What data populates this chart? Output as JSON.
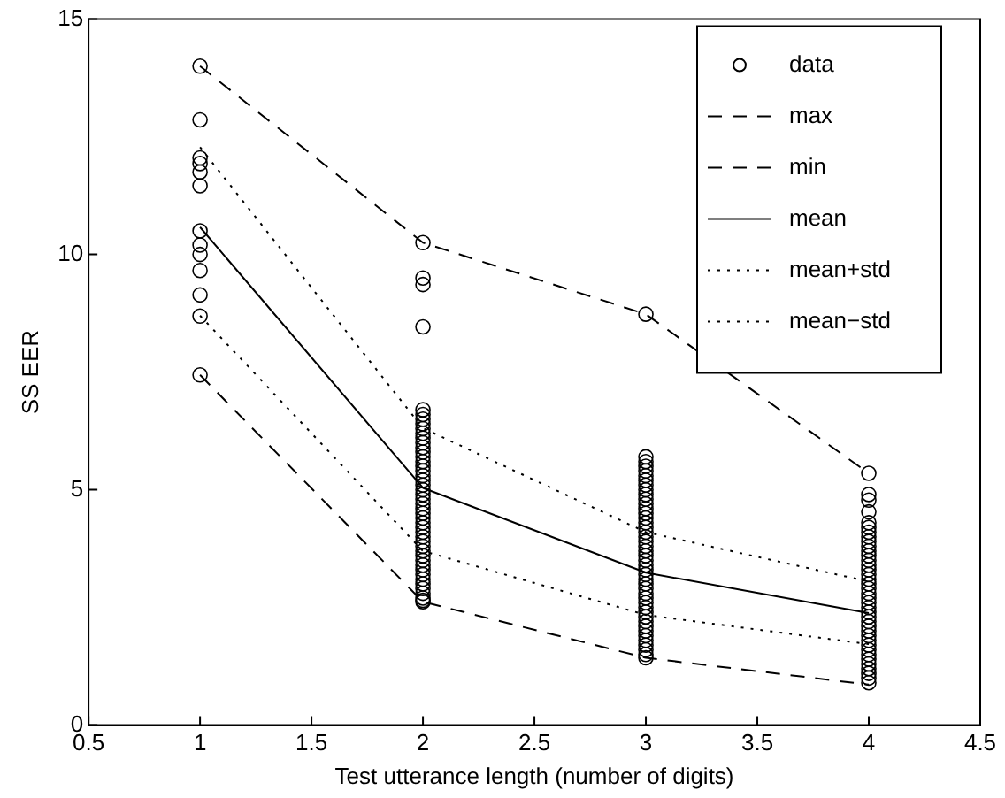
{
  "chart_data": {
    "type": "scatter",
    "xlabel": "Test utterance length (number of digits)",
    "ylabel": "SS EER",
    "xlim": [
      0.5,
      4.5
    ],
    "xticks": [
      0.5,
      1,
      1.5,
      2,
      2.5,
      3,
      3.5,
      4,
      4.5
    ],
    "ylim": [
      0,
      15
    ],
    "yticks": [
      0,
      5,
      10,
      15
    ],
    "grid": false,
    "legend": "top right",
    "series": [
      {
        "name": "data",
        "type": "scatter",
        "marker": "circle",
        "color": "#000000",
        "x": [
          1,
          1,
          1,
          1,
          1,
          1,
          1,
          1,
          1,
          1,
          1,
          1,
          1,
          2,
          2,
          2,
          2,
          2,
          2,
          2,
          2,
          2,
          2,
          2,
          2,
          2,
          2,
          2,
          2,
          2,
          2,
          2,
          2,
          2,
          2,
          2,
          2,
          2,
          2,
          2,
          2,
          2,
          2,
          2,
          2,
          2,
          2,
          2,
          2,
          2,
          2,
          2,
          2,
          2,
          2,
          2,
          2,
          2,
          2,
          2,
          3,
          3,
          3,
          3,
          3,
          3,
          3,
          3,
          3,
          3,
          3,
          3,
          3,
          3,
          3,
          3,
          3,
          3,
          3,
          3,
          3,
          3,
          3,
          3,
          3,
          3,
          3,
          3,
          3,
          3,
          3,
          3,
          3,
          3,
          3,
          3,
          3,
          3,
          3,
          3,
          3,
          3,
          3,
          3,
          3,
          4,
          4,
          4,
          4,
          4,
          4,
          4,
          4,
          4,
          4,
          4,
          4,
          4,
          4,
          4,
          4,
          4,
          4,
          4,
          4,
          4,
          4,
          4,
          4,
          4,
          4,
          4,
          4,
          4,
          4,
          4,
          4,
          4,
          4,
          4,
          4,
          4,
          4,
          4
        ],
        "values": [
          14.0,
          12.86,
          12.05,
          11.93,
          11.75,
          11.46,
          10.5,
          10.2,
          10.0,
          9.66,
          9.14,
          8.69,
          7.44,
          10.25,
          9.5,
          9.36,
          8.46,
          6.7,
          6.6,
          6.5,
          6.4,
          6.3,
          6.2,
          6.1,
          6.0,
          5.9,
          5.8,
          5.7,
          5.6,
          5.5,
          5.4,
          5.3,
          5.2,
          5.1,
          5.0,
          4.9,
          4.8,
          4.7,
          4.6,
          4.5,
          4.4,
          4.3,
          4.2,
          4.1,
          4.0,
          3.9,
          3.8,
          3.7,
          3.6,
          3.5,
          3.4,
          3.3,
          3.2,
          3.1,
          3.0,
          2.9,
          2.8,
          2.7,
          2.62,
          2.65,
          8.73,
          5.7,
          5.6,
          5.5,
          5.4,
          5.3,
          5.2,
          5.1,
          5.0,
          4.9,
          4.8,
          4.7,
          4.6,
          4.5,
          4.4,
          4.3,
          4.2,
          4.1,
          4.0,
          3.9,
          3.8,
          3.7,
          3.6,
          3.5,
          3.4,
          3.3,
          3.2,
          3.1,
          3.0,
          2.9,
          2.8,
          2.7,
          2.6,
          2.5,
          2.4,
          2.3,
          2.2,
          2.1,
          2.0,
          1.9,
          1.8,
          1.7,
          1.6,
          1.5,
          1.43,
          5.35,
          4.9,
          4.78,
          4.53,
          4.3,
          4.2,
          4.1,
          4.0,
          3.9,
          3.8,
          3.7,
          3.6,
          3.5,
          3.4,
          3.3,
          3.2,
          3.1,
          3.0,
          2.9,
          2.8,
          2.7,
          2.6,
          2.5,
          2.4,
          2.3,
          2.2,
          2.1,
          2.0,
          1.9,
          1.8,
          1.7,
          1.6,
          1.5,
          1.4,
          1.3,
          1.2,
          1.1,
          1.0,
          0.9
        ]
      },
      {
        "name": "max",
        "type": "line",
        "line_style": "dashed",
        "color": "#000000",
        "x": [
          1,
          2,
          3,
          4
        ],
        "values": [
          14.0,
          10.25,
          8.73,
          5.35
        ]
      },
      {
        "name": "min",
        "type": "line",
        "line_style": "dashed",
        "color": "#000000",
        "x": [
          1,
          2,
          3,
          4
        ],
        "values": [
          7.44,
          2.62,
          1.43,
          0.86
        ]
      },
      {
        "name": "mean",
        "type": "line",
        "line_style": "solid",
        "color": "#000000",
        "x": [
          1,
          2,
          3,
          4
        ],
        "values": [
          10.58,
          5.04,
          3.24,
          2.38
        ]
      },
      {
        "name": "mean+std",
        "type": "line",
        "line_style": "dotted",
        "color": "#000000",
        "x": [
          1,
          2,
          3,
          4
        ],
        "values": [
          12.28,
          6.31,
          4.1,
          3.05
        ]
      },
      {
        "name": "mean−std",
        "type": "line",
        "line_style": "dotted",
        "color": "#000000",
        "x": [
          1,
          2,
          3,
          4
        ],
        "values": [
          8.7,
          3.7,
          2.34,
          1.72
        ]
      }
    ]
  }
}
